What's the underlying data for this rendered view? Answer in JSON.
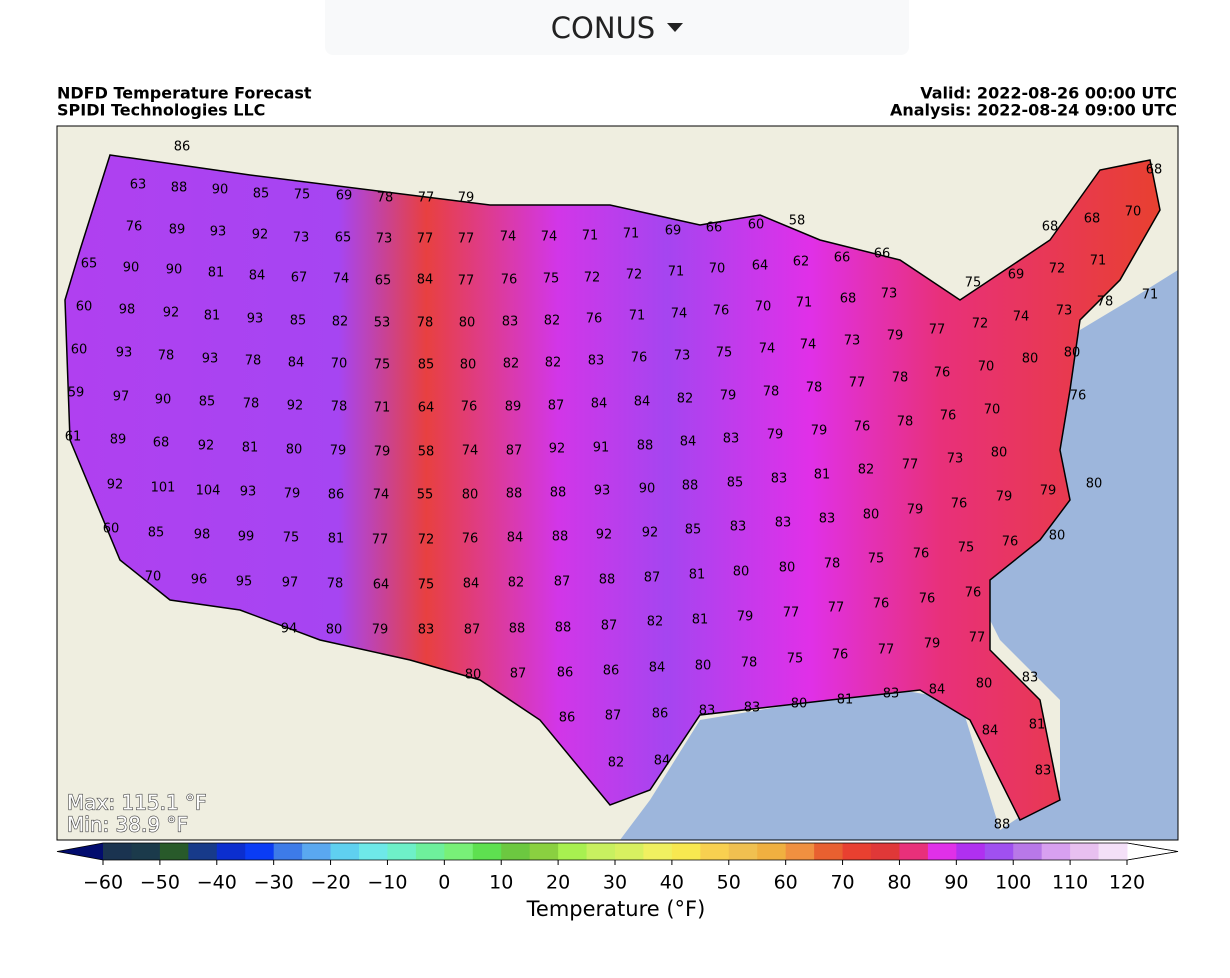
{
  "region": "CONUS",
  "chart_data": {
    "type": "map",
    "title": "NDFD Temperature Forecast",
    "subtitle": "SPIDI Technologies LLC",
    "valid": "Valid: 2022-08-26 00:00 UTC",
    "analysis": "Analysis: 2022-08-24 09:00 UTC",
    "max_label": "Max: 115.1 °F",
    "min_label": "Min: 38.9 °F",
    "values": [
      86,
      63,
      88,
      90,
      85,
      75,
      69,
      78,
      77,
      79,
      76,
      89,
      93,
      92,
      73,
      65,
      73,
      77,
      77,
      74,
      74,
      71,
      71,
      69,
      66,
      60,
      58,
      68,
      68,
      68,
      70,
      65,
      90,
      90,
      81,
      84,
      67,
      74,
      65,
      84,
      77,
      76,
      75,
      72,
      72,
      71,
      70,
      64,
      62,
      66,
      66,
      71,
      60,
      98,
      92,
      81,
      93,
      85,
      82,
      53,
      78,
      80,
      83,
      82,
      76,
      71,
      74,
      76,
      70,
      71,
      68,
      73,
      75,
      69,
      72,
      73,
      78,
      71,
      60,
      93,
      78,
      93,
      78,
      84,
      70,
      75,
      85,
      80,
      82,
      82,
      83,
      76,
      73,
      75,
      74,
      74,
      73,
      79,
      77,
      72,
      74,
      59,
      97,
      90,
      85,
      78,
      92,
      78,
      71,
      64,
      76,
      89,
      87,
      84,
      84,
      82,
      79,
      78,
      78,
      77,
      78,
      76,
      70,
      80,
      80,
      76,
      61,
      89,
      68,
      92,
      81,
      80,
      79,
      79,
      58,
      74,
      87,
      92,
      91,
      88,
      84,
      83,
      79,
      79,
      76,
      78,
      76,
      70,
      92,
      101,
      104,
      93,
      79,
      86,
      74,
      55,
      80,
      88,
      88,
      93,
      90,
      88,
      85,
      83,
      81,
      82,
      77,
      73,
      80,
      60,
      85,
      98,
      99,
      75,
      81,
      77,
      72,
      76,
      84,
      88,
      92,
      92,
      85,
      83,
      83,
      83,
      80,
      79,
      76,
      79,
      79,
      80,
      80,
      76,
      70,
      96,
      95,
      97,
      78,
      64,
      75,
      84,
      82,
      87,
      88,
      87,
      81,
      80,
      80,
      78,
      75,
      76,
      75,
      76,
      76,
      76,
      94,
      80,
      79,
      83,
      87,
      88,
      88,
      87,
      82,
      81,
      79,
      77,
      77,
      79,
      77,
      77,
      76,
      75,
      78,
      80,
      80,
      87,
      86,
      86,
      84,
      83,
      83,
      80,
      81,
      83,
      84,
      80,
      83,
      86,
      87,
      86,
      84,
      81,
      82,
      84,
      83,
      88
    ],
    "colorbar": {
      "label": "Temperature (°F)",
      "xlim": [
        -60,
        120
      ],
      "xticks": [
        {
          "value": -60,
          "label": "−60"
        },
        {
          "value": -50,
          "label": "−50"
        },
        {
          "value": -40,
          "label": "−40"
        },
        {
          "value": -30,
          "label": "−30"
        },
        {
          "value": -20,
          "label": "−20"
        },
        {
          "value": -10,
          "label": "−10"
        },
        0,
        10,
        20,
        30,
        40,
        50,
        60,
        70,
        80,
        90,
        100,
        110,
        120
      ],
      "under_color": "#020c6e",
      "over_color": "#ffffff",
      "colors": [
        "#1a3350",
        "#1b3a4b",
        "#285a2a",
        "#173a8a",
        "#0b2ecf",
        "#0a3cf5",
        "#3d7be8",
        "#5aa8f0",
        "#5fd0f0",
        "#6ee8e8",
        "#6ef0c8",
        "#6ef09c",
        "#78f078",
        "#5ee050",
        "#6cc840",
        "#8ad040",
        "#a8f050",
        "#c8f060",
        "#d8f060",
        "#f0f060",
        "#f8e850",
        "#f8d050",
        "#f0c050",
        "#f0b040",
        "#f09040",
        "#e86030",
        "#e84030",
        "#e03838",
        "#e8307a",
        "#e030e8",
        "#b030f0",
        "#a050f0",
        "#b878e8",
        "#d8a0f0",
        "#e8c0f0",
        "#f4e0f8"
      ]
    }
  }
}
